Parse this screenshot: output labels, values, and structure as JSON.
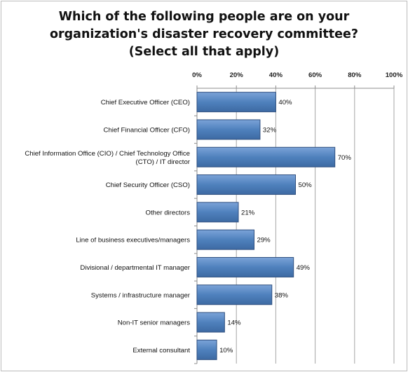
{
  "chart_data": {
    "type": "bar",
    "orientation": "horizontal",
    "title_lines": [
      "Which of the following people are on your",
      "organization's disaster recovery committee?",
      "(Select all that apply)"
    ],
    "categories": [
      [
        "Chief Executive Officer (CEO)"
      ],
      [
        "Chief Financial Officer (CFO)"
      ],
      [
        "Chief Information Office (CIO) / Chief Technology Office",
        "(CTO) / IT director"
      ],
      [
        "Chief Security Officer (CSO)"
      ],
      [
        "Other directors"
      ],
      [
        "Line of business executives/managers"
      ],
      [
        "Divisional / departmental IT manager"
      ],
      [
        "Systems / infrastructure manager"
      ],
      [
        "Non-IT senior managers"
      ],
      [
        "External consultant"
      ]
    ],
    "values": [
      40,
      32,
      70,
      50,
      21,
      29,
      49,
      38,
      14,
      10
    ],
    "data_labels": [
      "40%",
      "32%",
      "70%",
      "50%",
      "21%",
      "29%",
      "49%",
      "38%",
      "14%",
      "10%"
    ],
    "xticks": [
      "0%",
      "20%",
      "40%",
      "60%",
      "80%",
      "100%"
    ],
    "xlim": [
      0,
      100
    ],
    "xaxis_position": "top",
    "grid": true,
    "bar_color": "#4f81bd"
  }
}
